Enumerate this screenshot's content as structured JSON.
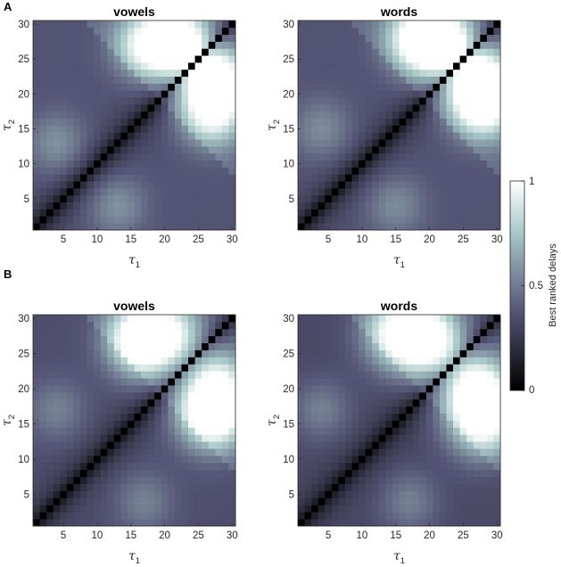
{
  "panel_labels": [
    "A",
    "B"
  ],
  "colorbar": {
    "label": "Best ranked delays",
    "ticks": [
      "0",
      "0.5",
      "1"
    ],
    "colormap": "bone",
    "range": [
      0,
      1
    ]
  },
  "axis": {
    "x_symbol": "τ",
    "x_sub": "1",
    "y_symbol": "τ",
    "y_sub": "2",
    "ticks": [
      "5",
      "10",
      "15",
      "20",
      "25",
      "30"
    ]
  },
  "chart_data": [
    {
      "type": "heatmap",
      "panel": "A",
      "title": "vowels",
      "x_range": [
        1,
        30
      ],
      "y_range": [
        1,
        30
      ],
      "grid": false,
      "diagonal_value": 0,
      "blobs": [
        {
          "center": [
            22,
            27
          ],
          "amplitude": 0.95,
          "spread": 3.5
        },
        {
          "center": [
            27,
            17
          ],
          "amplitude": 0.97,
          "spread": 3.2
        },
        {
          "center": [
            28,
            22
          ],
          "amplitude": 0.6,
          "spread": 3.0
        },
        {
          "center": [
            4,
            13
          ],
          "amplitude": 0.42,
          "spread": 3.0
        }
      ],
      "base_level": 0.34
    },
    {
      "type": "heatmap",
      "panel": "A",
      "title": "words",
      "x_range": [
        1,
        30
      ],
      "y_range": [
        1,
        30
      ],
      "grid": false,
      "diagonal_value": 0,
      "blobs": [
        {
          "center": [
            21,
            27
          ],
          "amplitude": 0.95,
          "spread": 3.5
        },
        {
          "center": [
            28,
            18
          ],
          "amplitude": 1.0,
          "spread": 3.2
        },
        {
          "center": [
            28,
            23
          ],
          "amplitude": 0.6,
          "spread": 3.0
        },
        {
          "center": [
            4,
            15
          ],
          "amplitude": 0.38,
          "spread": 3.0
        }
      ],
      "base_level": 0.34
    },
    {
      "type": "heatmap",
      "panel": "B",
      "title": "vowels",
      "x_range": [
        1,
        30
      ],
      "y_range": [
        1,
        30
      ],
      "grid": false,
      "diagonal_value": 0,
      "blobs": [
        {
          "center": [
            18,
            27
          ],
          "amplitude": 0.9,
          "spread": 3.8
        },
        {
          "center": [
            27,
            16
          ],
          "amplitude": 0.95,
          "spread": 3.3
        },
        {
          "center": [
            28,
            22
          ],
          "amplitude": 0.55,
          "spread": 3.0
        },
        {
          "center": [
            4,
            17
          ],
          "amplitude": 0.35,
          "spread": 3.0
        }
      ],
      "base_level": 0.32
    },
    {
      "type": "heatmap",
      "panel": "B",
      "title": "words",
      "x_range": [
        1,
        30
      ],
      "y_range": [
        1,
        30
      ],
      "grid": false,
      "diagonal_value": 0,
      "blobs": [
        {
          "center": [
            19,
            27
          ],
          "amplitude": 0.92,
          "spread": 3.8
        },
        {
          "center": [
            28,
            15
          ],
          "amplitude": 1.0,
          "spread": 3.5
        },
        {
          "center": [
            27,
            21
          ],
          "amplitude": 0.55,
          "spread": 3.0
        },
        {
          "center": [
            4,
            17
          ],
          "amplitude": 0.38,
          "spread": 3.0
        }
      ],
      "base_level": 0.3
    }
  ]
}
